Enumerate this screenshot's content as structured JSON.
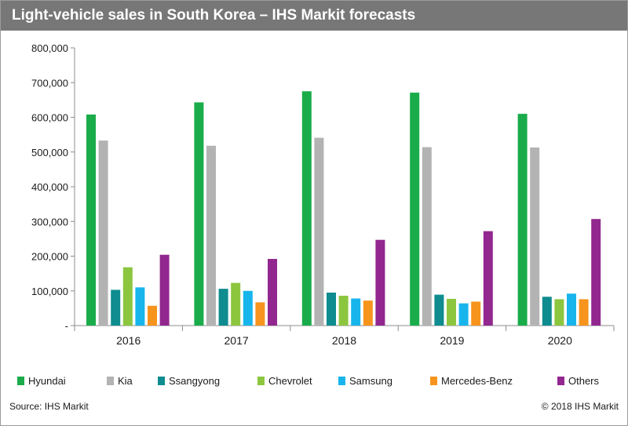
{
  "title": "Light-vehicle sales in South Korea – IHS Markit forecasts",
  "footer": {
    "source": "Source: IHS Markit",
    "copyright": "© 2018 IHS Markit"
  },
  "chart_data": {
    "type": "bar",
    "categories": [
      "2016",
      "2017",
      "2018",
      "2019",
      "2020"
    ],
    "ylim": [
      0,
      800000
    ],
    "yticks": [
      0,
      100000,
      200000,
      300000,
      400000,
      500000,
      600000,
      700000,
      800000
    ],
    "ytick_labels": [
      "-",
      "100,000",
      "200,000",
      "300,000",
      "400,000",
      "500,000",
      "600,000",
      "700,000",
      "800,000"
    ],
    "grid": false,
    "legend_position": "bottom",
    "series": [
      {
        "name": "Hyundai",
        "color": "#1aac4a",
        "values": [
          608000,
          643000,
          675000,
          671000,
          610000
        ]
      },
      {
        "name": "Kia",
        "color": "#b3b3b3",
        "values": [
          533000,
          518000,
          541000,
          514000,
          513000
        ]
      },
      {
        "name": "Ssangyong",
        "color": "#0e8c8f",
        "values": [
          103000,
          106000,
          95000,
          89000,
          83000
        ]
      },
      {
        "name": "Chevrolet",
        "color": "#8cc63f",
        "values": [
          168000,
          123000,
          86000,
          77000,
          76000
        ]
      },
      {
        "name": "Samsung",
        "color": "#18b5ec",
        "values": [
          110000,
          100000,
          78000,
          64000,
          92000
        ]
      },
      {
        "name": "Mercedes-Benz",
        "color": "#f7941d",
        "values": [
          57000,
          67000,
          72000,
          69000,
          76000
        ]
      },
      {
        "name": "Others",
        "color": "#92278f",
        "values": [
          204000,
          192000,
          247000,
          272000,
          307000
        ]
      }
    ]
  }
}
